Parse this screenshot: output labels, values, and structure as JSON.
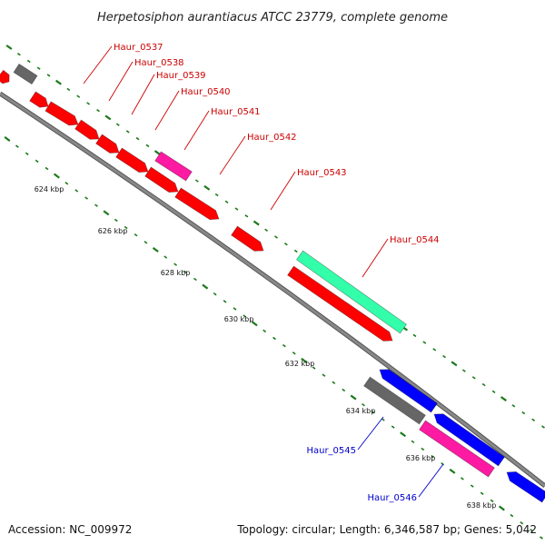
{
  "title": "Herpetosiphon aurantiacus ATCC 23779, complete genome",
  "footer": {
    "accession": "Accession: NC_009972",
    "summary": "Topology: circular; Length: 6,346,587 bp; Genes: 5,042"
  },
  "colors": {
    "backbone": "#888888",
    "tick": "#1a7a1a",
    "red_gene": "#ff0000",
    "pink_gene": "#ff1aa3",
    "teal_gene": "#33ffaa",
    "blue_gene": "#0000ff",
    "gray_gene": "#666666",
    "red_label": "#cc0000",
    "blue_label": "#0000cc"
  },
  "tick_labels": [
    "624 kbp",
    "626 kbp",
    "628 kbp",
    "630 kbp",
    "632 kbp",
    "634 kbp",
    "636 kbp",
    "638 kbp"
  ],
  "gene_labels": [
    {
      "text": "Haur_0537",
      "color": "red"
    },
    {
      "text": "Haur_0538",
      "color": "red"
    },
    {
      "text": "Haur_0539",
      "color": "red"
    },
    {
      "text": "Haur_0540",
      "color": "red"
    },
    {
      "text": "Haur_0541",
      "color": "red"
    },
    {
      "text": "Haur_0542",
      "color": "red"
    },
    {
      "text": "Haur_0543",
      "color": "red"
    },
    {
      "text": "Haur_0544",
      "color": "red"
    },
    {
      "text": "Haur_0545",
      "color": "blue"
    },
    {
      "text": "Haur_0546",
      "color": "blue"
    }
  ]
}
